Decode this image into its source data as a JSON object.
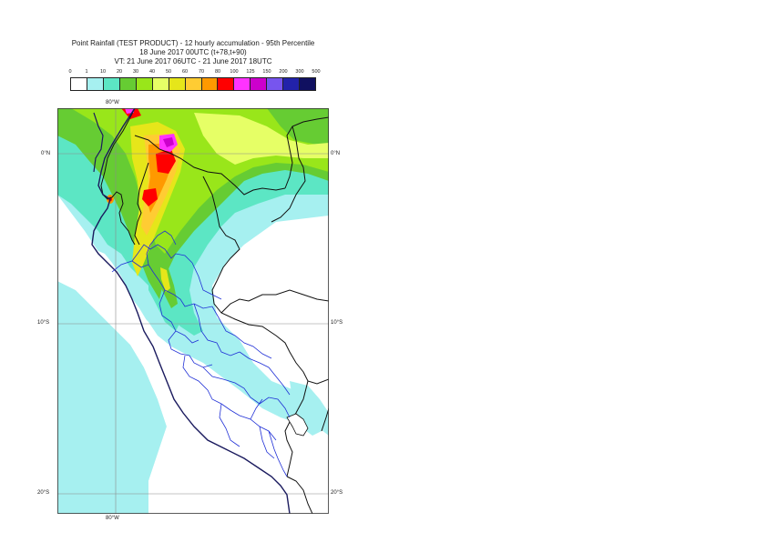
{
  "title": {
    "line1": "Point Rainfall (TEST PRODUCT) - 12 hourly accumulation - 95th Percentile",
    "line2": "18 June 2017 00UTC (t+78,t+90)",
    "line3": "VT: 21 June 2017 06UTC - 21 June 2017 18UTC"
  },
  "legend": {
    "thresholds": [
      "0",
      "1",
      "10",
      "20",
      "30",
      "40",
      "50",
      "60",
      "70",
      "80",
      "100",
      "125",
      "150",
      "200",
      "300",
      "500"
    ],
    "colors": [
      "#ffffff",
      "#a6f0f0",
      "#5ce6c4",
      "#66cc33",
      "#99e61a",
      "#e6ff66",
      "#e6e61a",
      "#ffcc33",
      "#ff9900",
      "#ff0000",
      "#ff33ff",
      "#cc00cc",
      "#7755ee",
      "#2222aa",
      "#101060"
    ]
  },
  "axes": {
    "lon_top": "80°W",
    "lon_bottom": "80°W",
    "lat_labels": [
      "0°N",
      "10°S",
      "20°S"
    ]
  }
}
